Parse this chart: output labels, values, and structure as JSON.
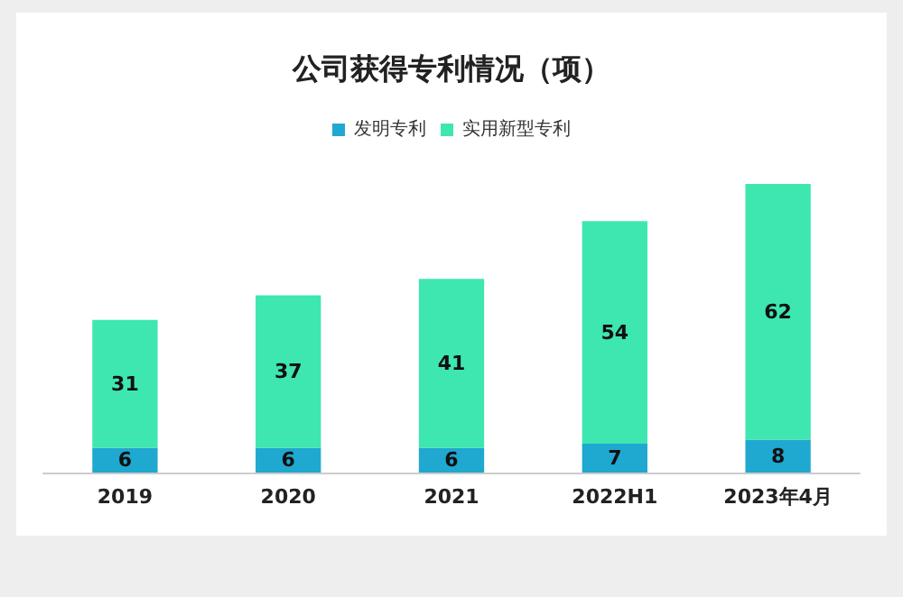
{
  "chart_data": {
    "type": "bar",
    "title": "公司获得专利情况（项）",
    "categories": [
      "2019",
      "2020",
      "2021",
      "2022H1",
      "2023年4月"
    ],
    "stacked": true,
    "data_labels": true,
    "legend": "top",
    "series": [
      {
        "name": "发明专利",
        "color": "#1fa8d0",
        "values": [
          6,
          6,
          6,
          7,
          8
        ]
      },
      {
        "name": "实用新型专利",
        "color": "#3ee6b0",
        "values": [
          31,
          37,
          41,
          54,
          62
        ]
      }
    ]
  }
}
